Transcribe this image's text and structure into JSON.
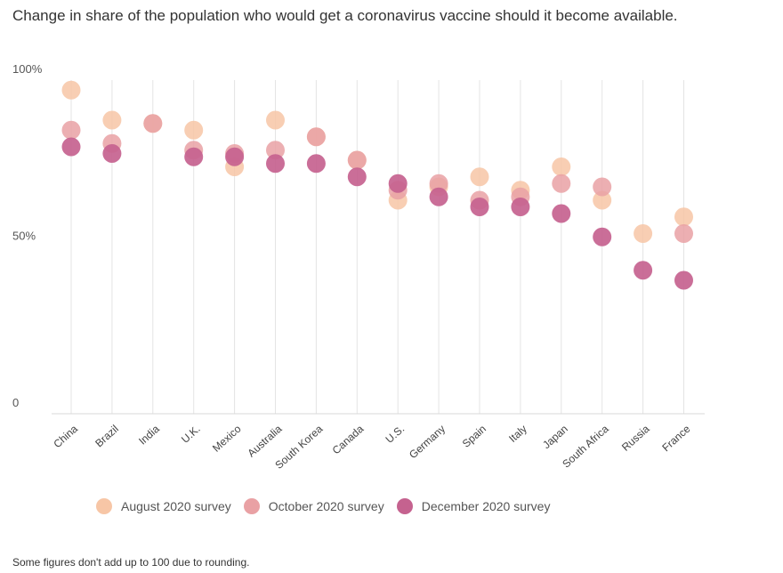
{
  "title": "Change in share of the population who would get a coronavirus vaccine should it become available.",
  "footnote": "Some figures don't add up to 100 due to rounding.",
  "chart_data": {
    "type": "scatter",
    "title": "Change in share of the population who would get a coronavirus vaccine should it become available.",
    "categories": [
      "China",
      "Brazil",
      "India",
      "U.K.",
      "Mexico",
      "Australia",
      "South Korea",
      "Canada",
      "U.S.",
      "Germany",
      "Spain",
      "Italy",
      "Japan",
      "South Africa",
      "Russia",
      "France"
    ],
    "ylim": [
      0,
      100
    ],
    "y_ticks": [
      {
        "value": 0,
        "label": "0"
      },
      {
        "value": 50,
        "label": "50%"
      },
      {
        "value": 100,
        "label": "100%"
      }
    ],
    "grid": "vertical",
    "legend_position": "bottom",
    "series": [
      {
        "name": "August 2020 survey",
        "color": "#f7c6a6",
        "values": [
          97,
          88,
          87,
          85,
          74,
          88,
          83,
          76,
          64,
          68,
          71,
          67,
          74,
          64,
          54,
          59
        ]
      },
      {
        "name": "October 2020 survey",
        "color": "#e9a1a4",
        "values": [
          85,
          81,
          87,
          79,
          78,
          79,
          83,
          76,
          67,
          69,
          64,
          65,
          69,
          68,
          null,
          54
        ]
      },
      {
        "name": "December 2020 survey",
        "color": "#c5628f",
        "values": [
          80,
          78,
          null,
          77,
          77,
          75,
          75,
          71,
          69,
          65,
          62,
          62,
          60,
          53,
          43,
          40
        ]
      }
    ]
  }
}
